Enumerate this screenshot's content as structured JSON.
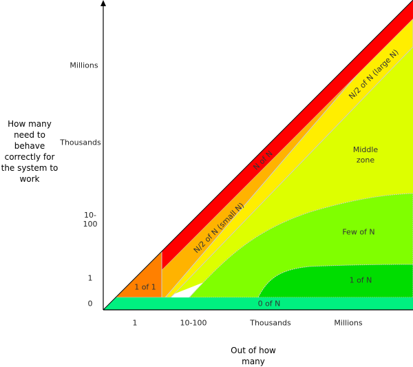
{
  "y_axis": {
    "title": "How many need to behave correctly for the system to work",
    "ticks": [
      "Millions",
      "Thousands",
      "10-100",
      "1",
      "0"
    ]
  },
  "x_axis": {
    "title": "Out of how many",
    "ticks": [
      "1",
      "10-100",
      "Thousands",
      "Millions"
    ]
  },
  "zones": {
    "zero_of_n": "0 of N",
    "one_of_one": "1 of 1",
    "one_of_n": "1 of N",
    "few_of_n": "Few of N",
    "middle_zone": "Middle zone",
    "half_small": "N/2 of N (small N)",
    "half_large": "N/2 of N (large N)",
    "n_of_n": "N of N"
  },
  "colors": {
    "zero_of_n": "#00f080",
    "one_of_one": "#ff8000",
    "one_of_n": "#00dd00",
    "few_of_n": "#80ff00",
    "middle_zone": "#ddff00",
    "half_small": "#ffb300",
    "half_large": "#ffee00",
    "n_of_n": "#ff0000"
  }
}
